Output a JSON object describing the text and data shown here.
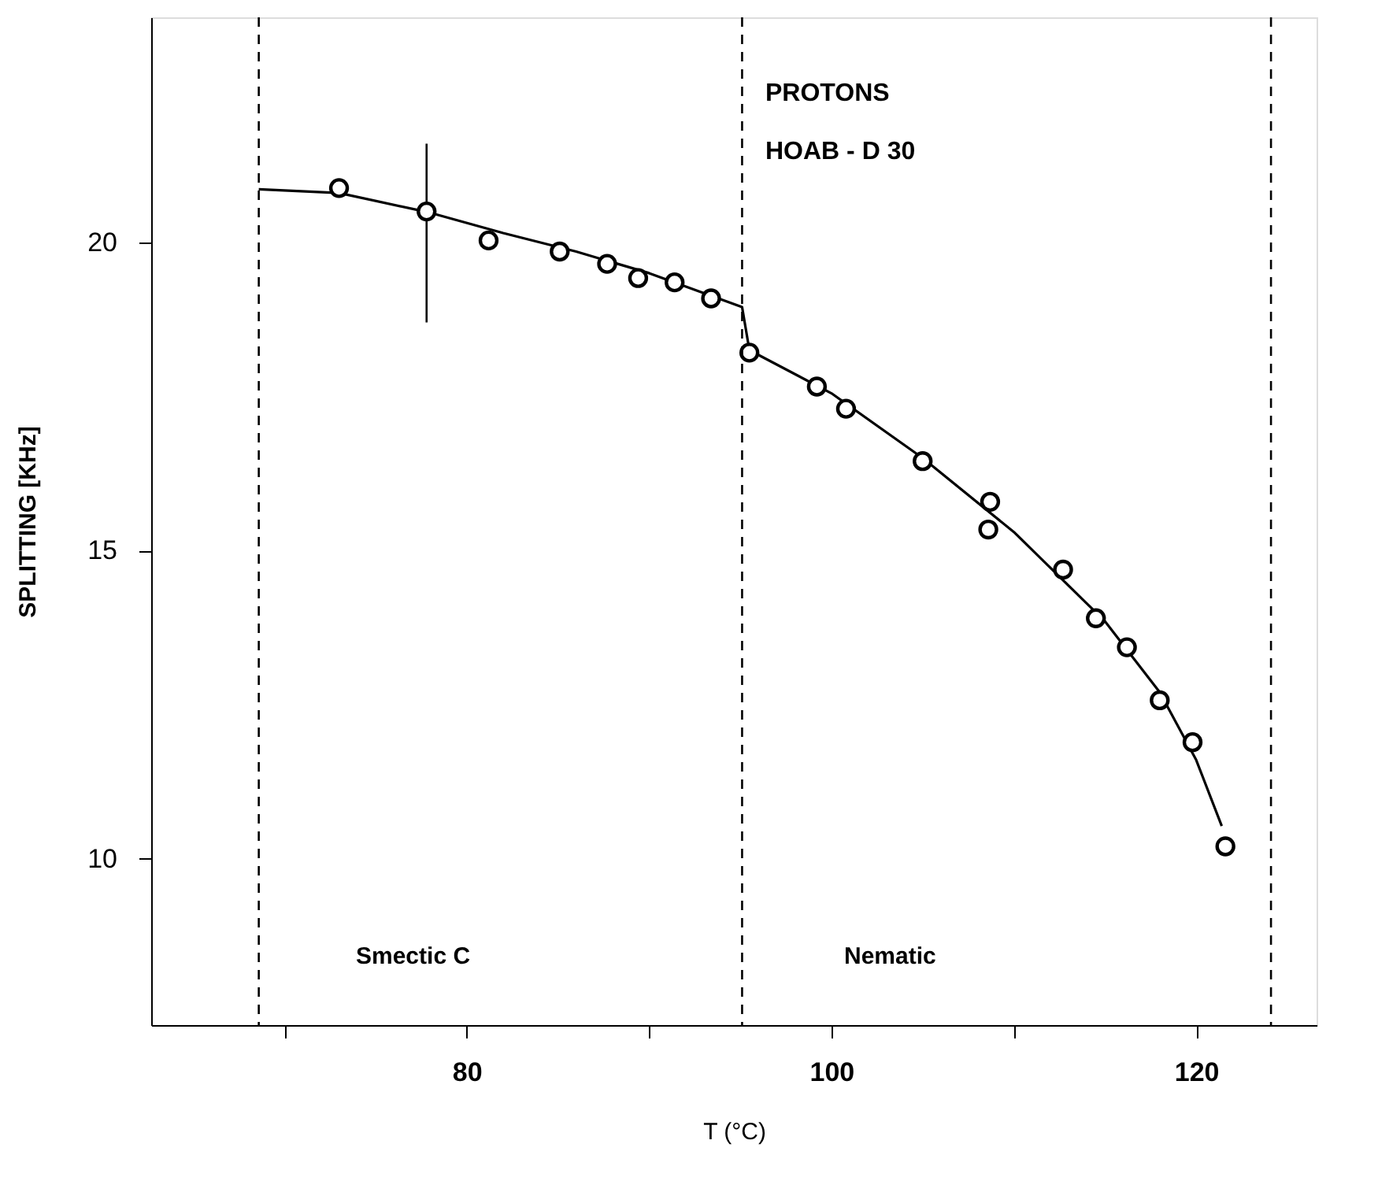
{
  "chart_data": {
    "type": "scatter",
    "xlabel": "T (°C)",
    "ylabel": "SPLITTING [KHz]",
    "xlim": [
      62.7,
      126.6
    ],
    "ylim": [
      7.3,
      23.65
    ],
    "xticks": [
      {
        "value": 70,
        "label": null
      },
      80,
      {
        "value": 90,
        "label": null
      },
      100,
      {
        "value": 110,
        "label": null
      },
      120
    ],
    "yticks": [
      10,
      15,
      20
    ],
    "grid": false,
    "line_style": "solid",
    "series": [
      {
        "color": "#000000",
        "marker": "circle",
        "x": [
          73.0,
          77.8,
          81.2,
          85.1,
          87.7,
          89.4,
          91.4,
          93.4,
          95.5,
          99.2,
          100.8,
          105.0,
          108.7,
          108.6,
          112.7,
          114.5,
          116.2,
          118.0,
          119.8,
          121.6
        ],
        "values": [
          20.88,
          20.5,
          20.03,
          19.85,
          19.65,
          19.42,
          19.35,
          19.09,
          18.21,
          17.66,
          17.3,
          16.45,
          15.79,
          15.34,
          14.69,
          13.9,
          13.43,
          12.57,
          11.89,
          10.2
        ],
        "errors": [
          null,
          [
            18.7,
            21.6
          ],
          null,
          null,
          null,
          null,
          null,
          null,
          null,
          null,
          null,
          null,
          null,
          null,
          null,
          null,
          null,
          null,
          null,
          null
        ]
      },
      {
        "type": "line",
        "color": "#000000",
        "x": [
          68.6,
          73,
          78,
          82,
          86,
          90,
          95.1,
          95.5,
          100,
          105,
          110,
          115,
          118,
          120,
          121.4
        ],
        "values": [
          20.86,
          20.8,
          20.48,
          20.15,
          19.85,
          19.5,
          18.95,
          18.25,
          17.55,
          16.5,
          15.3,
          13.85,
          12.7,
          11.6,
          10.53
        ]
      }
    ],
    "ref_lines": [
      {
        "axis": "x",
        "value": 68.6,
        "line_style": "dashed",
        "color": "#000000"
      },
      {
        "axis": "x",
        "value": 95.1,
        "line_style": "dashed",
        "color": "#000000"
      },
      {
        "axis": "x",
        "value": 124.1,
        "line_style": "dashed",
        "color": "#000000"
      }
    ],
    "annotations": [
      "PROTONS",
      "HOAB - D 30",
      "Smectic C",
      "Nematic"
    ]
  }
}
